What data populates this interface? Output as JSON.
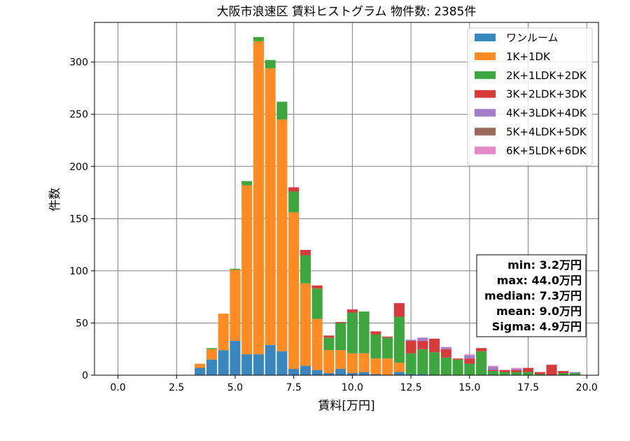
{
  "chart_data": {
    "type": "bar",
    "stacked": true,
    "title": "大阪市浪速区 賃料ヒストグラム 物件数: 2385件",
    "xlabel": "賃料[万円]",
    "ylabel": "件数",
    "xlim": [
      -1.0,
      20.5
    ],
    "ylim": [
      0,
      338
    ],
    "x_ticks": [
      0.0,
      2.5,
      5.0,
      7.5,
      10.0,
      12.5,
      15.0,
      17.5,
      20.0
    ],
    "x_tick_labels": [
      "0.0",
      "2.5",
      "5.0",
      "7.5",
      "10.0",
      "12.5",
      "15.0",
      "17.5",
      "20.0"
    ],
    "y_ticks": [
      0,
      50,
      100,
      150,
      200,
      250,
      300
    ],
    "y_tick_labels": [
      "0",
      "50",
      "100",
      "150",
      "200",
      "250",
      "300"
    ],
    "grid": true,
    "legend_position": "top-right",
    "bin_width": 0.5,
    "bar_width": 0.45,
    "x": [
      3.5,
      4.0,
      4.5,
      5.0,
      5.5,
      6.0,
      6.5,
      7.0,
      7.5,
      8.0,
      8.5,
      9.0,
      9.5,
      10.0,
      10.5,
      11.0,
      11.5,
      12.0,
      12.5,
      13.0,
      13.5,
      14.0,
      14.5,
      15.0,
      15.5,
      16.0,
      16.5,
      17.0,
      17.5,
      18.0,
      18.5,
      19.0,
      19.5
    ],
    "series": [
      {
        "name": "ワンルーム",
        "color": "#3a86bf",
        "values": [
          7,
          15,
          24,
          33,
          20,
          20,
          29,
          23,
          6,
          9,
          5,
          2,
          6,
          2,
          3,
          1,
          0,
          3,
          1,
          1,
          0,
          0,
          0,
          0,
          0,
          0,
          0,
          0,
          0,
          0,
          0,
          0,
          0
        ]
      },
      {
        "name": "1K+1DK",
        "color": "#ff8b25",
        "values": [
          4,
          10,
          35,
          68,
          162,
          300,
          265,
          222,
          150,
          79,
          49,
          22,
          18,
          19,
          18,
          15,
          16,
          9,
          0,
          0,
          0,
          0,
          0,
          0,
          0,
          0,
          0,
          0,
          0,
          0,
          0,
          0,
          0
        ]
      },
      {
        "name": "2K+1LDK+2DK",
        "color": "#3ea63e",
        "values": [
          0,
          1,
          0,
          1,
          4,
          4,
          8,
          17,
          20,
          27,
          29,
          12,
          26,
          39,
          40,
          23,
          20,
          44,
          20,
          24,
          22,
          17,
          15,
          11,
          23,
          4,
          3,
          3,
          3,
          1,
          0,
          2,
          2
        ]
      },
      {
        "name": "3K+2LDK+3DK",
        "color": "#d63a3a",
        "values": [
          0,
          0,
          0,
          0,
          0,
          0,
          0,
          0,
          4,
          5,
          3,
          2,
          1,
          3,
          0,
          3,
          1,
          13,
          12,
          8,
          13,
          8,
          1,
          5,
          3,
          1,
          2,
          2,
          4,
          2,
          10,
          2,
          0
        ]
      },
      {
        "name": "4K+3LDK+4DK",
        "color": "#a27fc9",
        "values": [
          0,
          0,
          0,
          0,
          0,
          0,
          0,
          0,
          0,
          0,
          0,
          0,
          0,
          0,
          0,
          0,
          0,
          0,
          1,
          3,
          0,
          2,
          0,
          3,
          0,
          3,
          0,
          1,
          0,
          0,
          0,
          0,
          1
        ]
      },
      {
        "name": "5K+4LDK+5DK",
        "color": "#9a6a5c",
        "values": [
          0,
          0,
          0,
          0,
          0,
          0,
          0,
          0,
          0,
          0,
          0,
          0,
          0,
          0,
          0,
          0,
          0,
          0,
          0,
          0,
          0,
          0,
          0,
          0,
          0,
          0,
          0,
          0,
          0,
          0,
          0,
          0,
          0
        ]
      },
      {
        "name": "6K+5LDK+6DK",
        "color": "#e48ac6",
        "values": [
          0,
          0,
          0,
          0,
          0,
          0,
          0,
          0,
          0,
          0,
          0,
          0,
          0,
          0,
          0,
          0,
          0,
          0,
          0,
          0,
          0,
          0,
          0,
          1,
          0,
          1,
          0,
          1,
          0,
          0,
          0,
          0,
          0
        ]
      }
    ],
    "annotation": {
      "position": "right",
      "lines": [
        "min: 3.2万円",
        "max: 44.0万円",
        "median: 7.3万円",
        "mean: 9.0万円",
        "Sigma: 4.9万円"
      ]
    }
  }
}
